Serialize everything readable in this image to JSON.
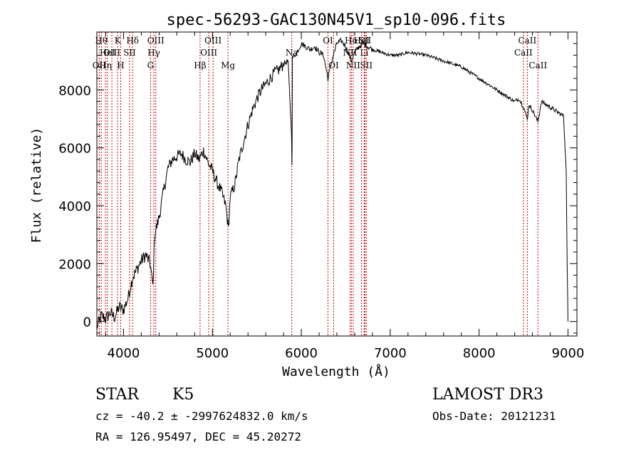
{
  "chart_data": {
    "type": "line",
    "title": "spec-56293-GAC130N45V1_sp10-096.fits",
    "xlabel": "Wavelength (Å)",
    "ylabel": "Flux (relative)",
    "xlim": [
      3700,
      9100
    ],
    "ylim": [
      -500,
      10000
    ],
    "xticks": [
      4000,
      5000,
      6000,
      7000,
      8000,
      9000
    ],
    "yticks": [
      0,
      2000,
      4000,
      6000,
      8000
    ],
    "xtick_labels": [
      "4000",
      "5000",
      "6000",
      "7000",
      "8000",
      "9000"
    ],
    "ytick_labels": [
      "0",
      "2000",
      "4000",
      "6000",
      "8000"
    ],
    "series": [
      {
        "name": "spectrum",
        "color": "#000000",
        "x": [
          3700,
          3750,
          3800,
          3850,
          3900,
          3950,
          4000,
          4050,
          4100,
          4150,
          4200,
          4250,
          4300,
          4330,
          4350,
          4400,
          4450,
          4500,
          4550,
          4600,
          4650,
          4700,
          4750,
          4800,
          4850,
          4900,
          4950,
          5000,
          5050,
          5100,
          5150,
          5180,
          5200,
          5250,
          5300,
          5350,
          5400,
          5450,
          5500,
          5550,
          5600,
          5650,
          5700,
          5750,
          5800,
          5850,
          5890,
          5895,
          5900,
          5950,
          6000,
          6050,
          6100,
          6150,
          6200,
          6250,
          6300,
          6350,
          6400,
          6450,
          6500,
          6563,
          6600,
          6650,
          6700,
          6750,
          6800,
          6900,
          7000,
          7100,
          7200,
          7300,
          7400,
          7500,
          7600,
          7700,
          7800,
          7900,
          8000,
          8100,
          8200,
          8300,
          8400,
          8450,
          8500,
          8542,
          8560,
          8600,
          8662,
          8700,
          8800,
          8900,
          8950,
          8980,
          8990,
          9000
        ],
        "y": [
          -200,
          200,
          100,
          300,
          150,
          500,
          400,
          800,
          1500,
          1800,
          2100,
          2300,
          2000,
          1200,
          3000,
          3600,
          4500,
          5300,
          5600,
          5700,
          5800,
          5600,
          5500,
          5800,
          5600,
          5900,
          5500,
          5200,
          4800,
          4500,
          4000,
          3200,
          4300,
          4700,
          5600,
          6200,
          6800,
          7300,
          7700,
          8000,
          8200,
          8400,
          8600,
          8700,
          8900,
          9000,
          6500,
          5500,
          9100,
          9300,
          9600,
          9500,
          9400,
          9500,
          9300,
          9200,
          8400,
          9100,
          9600,
          9700,
          9500,
          9000,
          9300,
          9500,
          9600,
          9500,
          9400,
          9300,
          9200,
          9200,
          9300,
          9250,
          9200,
          9100,
          9000,
          8900,
          8800,
          8600,
          8400,
          8200,
          8000,
          7800,
          7600,
          7700,
          7400,
          7000,
          7500,
          7300,
          6900,
          7600,
          7400,
          7200,
          7100,
          5200,
          2000,
          0
        ]
      }
    ],
    "line_markers": [
      {
        "x": 3727,
        "label": "OII",
        "row": 2,
        "color": "#cc0000"
      },
      {
        "x": 3750,
        "label": "Hθ",
        "row": 0,
        "color": "#cc0000"
      },
      {
        "x": 3797,
        "label": "Hη",
        "row": 2,
        "color": "#cc0000"
      },
      {
        "x": 3820,
        "label": "HeI",
        "row": 1,
        "color": "#cc0000"
      },
      {
        "x": 3869,
        "label": "OIII",
        "row": 1,
        "color": "#cc0000"
      },
      {
        "x": 3934,
        "label": "K",
        "row": 0,
        "color": "#cc0000"
      },
      {
        "x": 3968,
        "label": "H",
        "row": 2,
        "color": "#cc0000"
      },
      {
        "x": 4068,
        "label": "SII",
        "row": 1,
        "color": "#cc0000"
      },
      {
        "x": 4102,
        "label": "Hδ",
        "row": 0,
        "color": "#cc0000"
      },
      {
        "x": 4304,
        "label": "G",
        "row": 2,
        "color": "#cc0000"
      },
      {
        "x": 4341,
        "label": "Hγ",
        "row": 1,
        "color": "#cc0000"
      },
      {
        "x": 4363,
        "label": "OIII",
        "row": 0,
        "color": "#cc0000"
      },
      {
        "x": 4861,
        "label": "Hβ",
        "row": 2,
        "color": "#cc0000"
      },
      {
        "x": 4959,
        "label": "OIII",
        "row": 1,
        "color": "#cc0000"
      },
      {
        "x": 5007,
        "label": "OIII",
        "row": 0,
        "color": "#cc0000"
      },
      {
        "x": 5175,
        "label": "Mg",
        "row": 2,
        "color": "#cc0000"
      },
      {
        "x": 5893,
        "label": "Na",
        "row": 1,
        "color": "#cc0000"
      },
      {
        "x": 6300,
        "label": "OI",
        "row": 0,
        "color": "#cc0000"
      },
      {
        "x": 6364,
        "label": "OI",
        "row": 2,
        "color": "#cc0000"
      },
      {
        "x": 6548,
        "label": "NII",
        "row": 1,
        "color": "#cc0000"
      },
      {
        "x": 6563,
        "label": "Hα",
        "row": 0,
        "color": "#cc0000"
      },
      {
        "x": 6583,
        "label": "NII",
        "row": 2,
        "color": "#cc0000"
      },
      {
        "x": 6678,
        "label": "HeI",
        "row": 0,
        "color": "#cc0000"
      },
      {
        "x": 6708,
        "label": "Li",
        "row": 1,
        "color": "#cc0000"
      },
      {
        "x": 6716,
        "label": "SII",
        "row": 0,
        "color": "#cc0000"
      },
      {
        "x": 6731,
        "label": "SII",
        "row": 2,
        "color": "#cc0000"
      },
      {
        "x": 8498,
        "label": "CaII",
        "row": 1,
        "color": "#cc0000"
      },
      {
        "x": 8542,
        "label": "CaII",
        "row": 0,
        "color": "#cc0000"
      },
      {
        "x": 8662,
        "label": "CaII",
        "row": 2,
        "color": "#cc0000"
      }
    ]
  },
  "info": {
    "object_class": "STAR",
    "subclass": "K5",
    "survey": "LAMOST DR3",
    "cz_line": "cz = -40.2 ± -2997624832.0 km/s",
    "obs_date": "Obs-Date: 20121231",
    "radec_line": "RA = 126.95497, DEC =  45.20272"
  }
}
